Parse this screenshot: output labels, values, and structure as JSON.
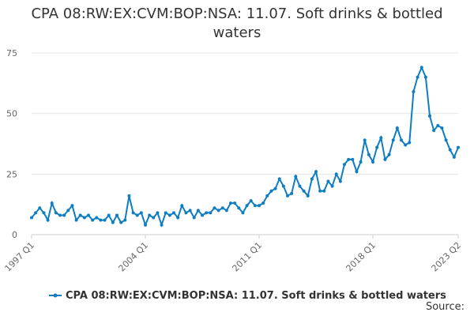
{
  "chart_data": {
    "type": "line",
    "title": "CPA 08:RW:EX:CVM:BOP:NSA: 11.07. Soft drinks & bottled waters",
    "categories": [
      "1997 Q1",
      null,
      null,
      null,
      null,
      null,
      null,
      null,
      null,
      null,
      null,
      null,
      null,
      null,
      null,
      null,
      null,
      null,
      null,
      null,
      null,
      null,
      null,
      null,
      null,
      null,
      null,
      null,
      "2004 Q1",
      null,
      null,
      null,
      null,
      null,
      null,
      null,
      null,
      null,
      null,
      null,
      null,
      null,
      null,
      null,
      null,
      null,
      null,
      null,
      null,
      null,
      null,
      null,
      null,
      null,
      null,
      null,
      "2011 Q1",
      null,
      null,
      null,
      null,
      null,
      null,
      null,
      null,
      null,
      null,
      null,
      null,
      null,
      null,
      null,
      null,
      null,
      null,
      null,
      null,
      null,
      null,
      null,
      null,
      null,
      null,
      null,
      "2018 Q1",
      null,
      null,
      null,
      null,
      null,
      null,
      null,
      null,
      null,
      null,
      null,
      null,
      null,
      null,
      null,
      null,
      null,
      null,
      null,
      null,
      "2023 Q2"
    ],
    "series": [
      {
        "name": "CPA 08:RW:EX:CVM:BOP:NSA: 11.07. Soft drinks & bottled waters",
        "color": "#0f7dc2",
        "values": [
          7,
          9,
          11,
          9,
          6,
          13,
          9,
          8,
          8,
          10,
          12,
          6,
          8,
          7,
          8,
          6,
          7,
          6,
          6,
          8,
          5,
          8,
          5,
          6,
          16,
          9,
          8,
          9,
          4,
          8,
          7,
          9,
          4,
          9,
          8,
          9,
          7,
          12,
          9,
          10,
          7,
          10,
          8,
          9,
          9,
          11,
          10,
          11,
          10,
          13,
          13,
          11,
          9,
          12,
          14,
          12,
          12,
          13,
          16,
          18,
          19,
          23,
          20,
          16,
          17,
          24,
          20,
          18,
          16,
          23,
          26,
          18,
          18,
          22,
          20,
          25,
          22,
          29,
          31,
          31,
          26,
          30,
          39,
          33,
          30,
          36,
          40,
          31,
          33,
          39,
          44,
          39,
          37,
          38,
          59,
          65,
          69,
          65,
          49,
          43,
          45,
          44,
          39,
          35,
          32,
          36
        ]
      }
    ],
    "ylim": [
      0,
      75
    ],
    "yticks": [
      0,
      25,
      50,
      75
    ],
    "grid": true,
    "source": "Source:"
  }
}
